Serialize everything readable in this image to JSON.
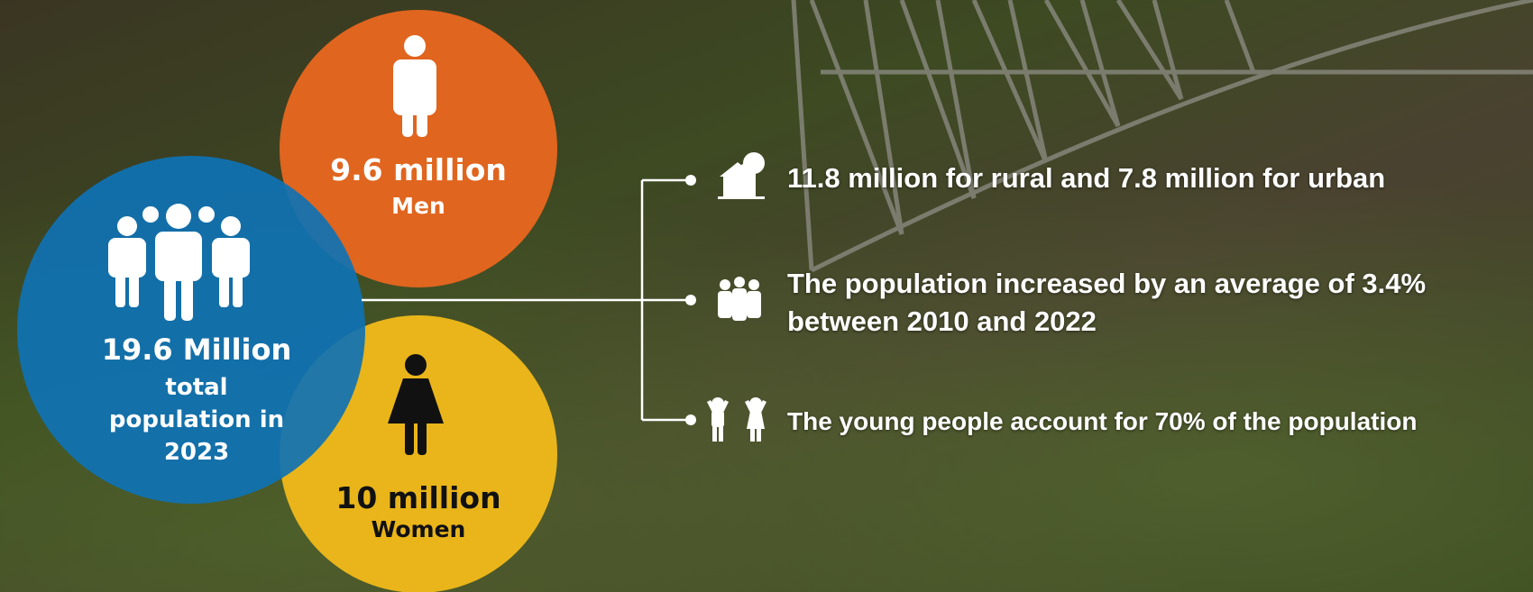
{
  "circles": {
    "men": {
      "value": "9.6 million",
      "label": "Men"
    },
    "total": {
      "value": "19.6 Million",
      "label": "total population in 2023"
    },
    "women": {
      "value": "10 million",
      "label": "Women"
    }
  },
  "facts": [
    "11.8 million for rural and 7.8 million for urban",
    "The population  increased by an average of 3.4% between 2010 and 2022",
    "The young people account for 70% of the population"
  ]
}
